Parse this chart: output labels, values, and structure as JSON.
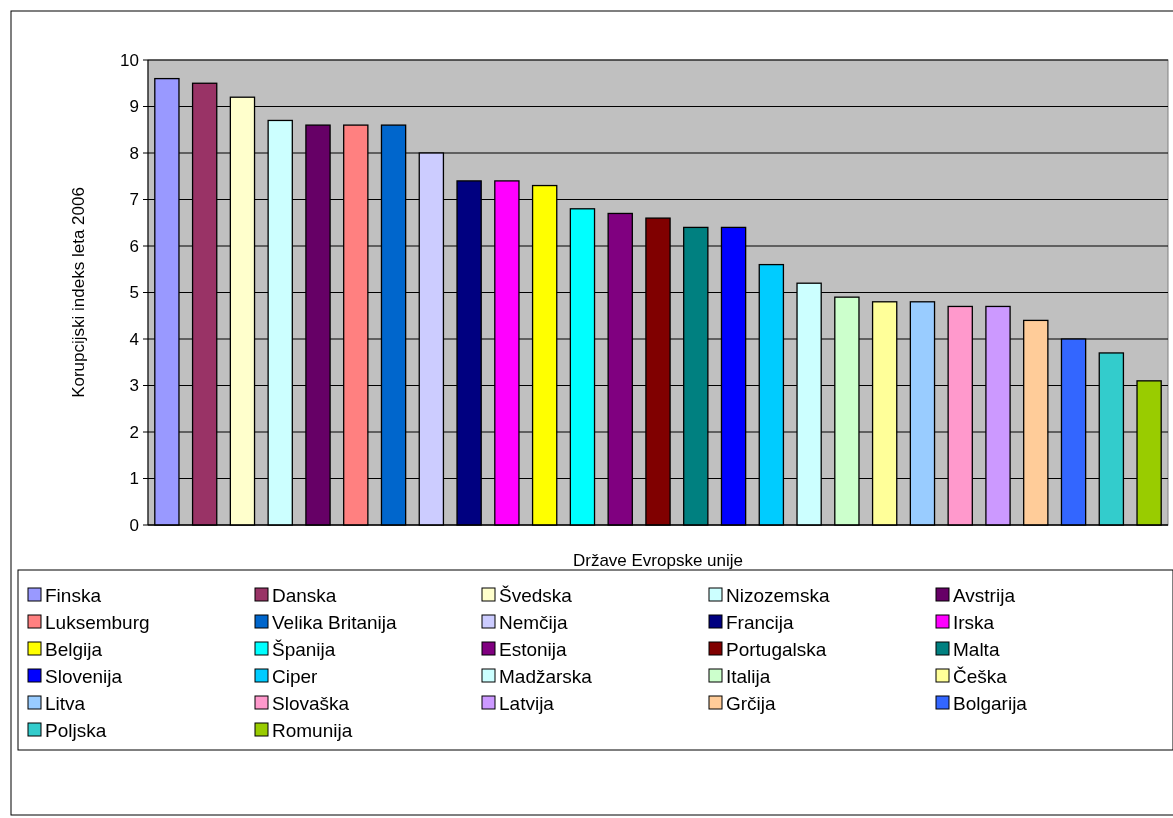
{
  "chart_data": {
    "type": "bar",
    "xlabel": "Države Evropske unije",
    "ylabel": "Korupcijski indeks leta 2006",
    "categories": [
      null
    ],
    "ylim": [
      0,
      10
    ],
    "yticks": [
      0,
      1,
      2,
      3,
      4,
      5,
      6,
      7,
      8,
      9,
      10
    ],
    "grid": "y",
    "legend": "bottom",
    "series": [
      {
        "name": "Finska",
        "color": "#9999ff",
        "values": [
          9.6
        ]
      },
      {
        "name": "Danska",
        "color": "#993366",
        "values": [
          9.5
        ]
      },
      {
        "name": "Švedska",
        "color": "#ffffcc",
        "values": [
          9.2
        ]
      },
      {
        "name": "Nizozemska",
        "color": "#ccffff",
        "values": [
          8.7
        ]
      },
      {
        "name": "Avstrija",
        "color": "#660066",
        "values": [
          8.6
        ]
      },
      {
        "name": "Luksemburg",
        "color": "#ff8080",
        "values": [
          8.6
        ]
      },
      {
        "name": "Velika Britanija",
        "color": "#0066cc",
        "values": [
          8.6
        ]
      },
      {
        "name": "Nemčija",
        "color": "#ccccff",
        "values": [
          8.0
        ]
      },
      {
        "name": "Francija",
        "color": "#000080",
        "values": [
          7.4
        ]
      },
      {
        "name": "Irska",
        "color": "#ff00ff",
        "values": [
          7.4
        ]
      },
      {
        "name": "Belgija",
        "color": "#ffff00",
        "values": [
          7.3
        ]
      },
      {
        "name": "Španija",
        "color": "#00ffff",
        "values": [
          6.8
        ]
      },
      {
        "name": "Estonija",
        "color": "#800080",
        "values": [
          6.7
        ]
      },
      {
        "name": "Portugalska",
        "color": "#800000",
        "values": [
          6.6
        ]
      },
      {
        "name": "Malta",
        "color": "#008080",
        "values": [
          6.4
        ]
      },
      {
        "name": "Slovenija",
        "color": "#0000ff",
        "values": [
          6.4
        ]
      },
      {
        "name": "Ciper",
        "color": "#00ccff",
        "values": [
          5.6
        ]
      },
      {
        "name": "Madžarska",
        "color": "#ccffff",
        "values": [
          5.2
        ]
      },
      {
        "name": "Italija",
        "color": "#ccffcc",
        "values": [
          4.9
        ]
      },
      {
        "name": "Češka",
        "color": "#ffff99",
        "values": [
          4.8
        ]
      },
      {
        "name": "Litva",
        "color": "#99ccff",
        "values": [
          4.8
        ]
      },
      {
        "name": "Slovaška",
        "color": "#ff99cc",
        "values": [
          4.7
        ]
      },
      {
        "name": "Latvija",
        "color": "#cc99ff",
        "values": [
          4.7
        ]
      },
      {
        "name": "Grčija",
        "color": "#ffcc99",
        "values": [
          4.4
        ]
      },
      {
        "name": "Bolgarija",
        "color": "#3366ff",
        "values": [
          4.0
        ]
      },
      {
        "name": "Poljska",
        "color": "#33cccc",
        "values": [
          3.7
        ]
      },
      {
        "name": "Romunija",
        "color": "#99cc00",
        "values": [
          3.1
        ]
      }
    ]
  }
}
